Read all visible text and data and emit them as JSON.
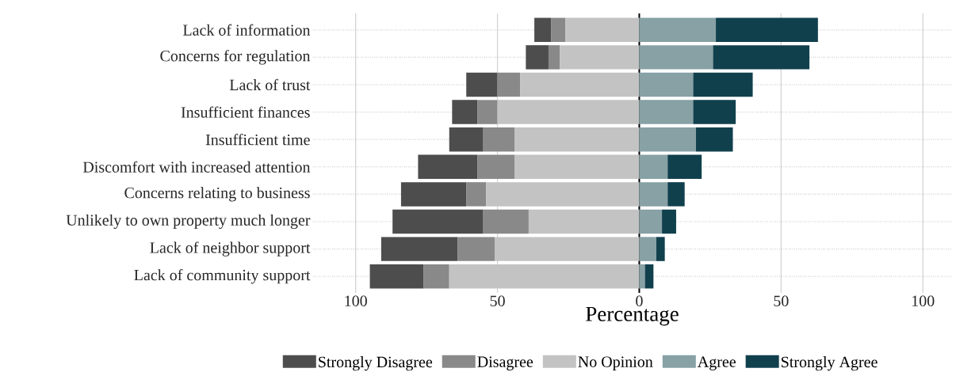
{
  "chart_data": {
    "type": "bar",
    "orientation": "horizontal",
    "xlabel": "Percentage",
    "categories": [
      "Lack of information",
      "Concerns for regulation",
      "Lack of trust",
      "Insufficient finances",
      "Insufficient time",
      "Discomfort with increased attention",
      "Concerns relating to business",
      "Unlikely to own property much longer",
      "Lack of neighbor support",
      "Lack of community support"
    ],
    "series": [
      {
        "name": "Strongly Disagree",
        "color": "#4d4d4d",
        "base": [
          -37,
          -40,
          -61,
          -66,
          -67,
          -78,
          -84,
          -87,
          -91,
          -95
        ],
        "values": [
          6,
          8,
          11,
          9,
          12,
          21,
          23,
          32,
          27,
          19
        ]
      },
      {
        "name": "Disagree",
        "color": "#898989",
        "base": [
          -31,
          -32,
          -50,
          -57,
          -55,
          -57,
          -61,
          -55,
          -64,
          -76
        ],
        "values": [
          5,
          4,
          8,
          7,
          11,
          13,
          7,
          16,
          13,
          9
        ]
      },
      {
        "name": "No Opinion",
        "color": "#c3c3c3",
        "base": [
          -26,
          -28,
          -42,
          -50,
          -44,
          -44,
          -54,
          -39,
          -51,
          -67
        ],
        "values": [
          26,
          28,
          42,
          50,
          44,
          44,
          54,
          39,
          51,
          67
        ]
      },
      {
        "name": "Agree",
        "color": "#87a1a5",
        "base": [
          0,
          0,
          0,
          0,
          0,
          0,
          0,
          0,
          0,
          0
        ],
        "values": [
          27,
          26,
          19,
          19,
          20,
          10,
          10,
          8,
          6,
          2
        ]
      },
      {
        "name": "Strongly Agree",
        "color": "#11404d",
        "base": [
          27,
          26,
          19,
          19,
          20,
          10,
          10,
          8,
          6,
          2
        ],
        "values": [
          36,
          34,
          21,
          15,
          13,
          12,
          6,
          5,
          3,
          3
        ]
      }
    ],
    "xlim": [
      -115,
      110
    ],
    "xticks": [
      {
        "value": -100,
        "label": "100"
      },
      {
        "value": -50,
        "label": "50"
      },
      0,
      50,
      100
    ],
    "ref_lines": [
      {
        "axis": "x",
        "value": 0,
        "color": "#000000",
        "line_style": "solid"
      }
    ],
    "grid": true,
    "legend": "bottom"
  }
}
